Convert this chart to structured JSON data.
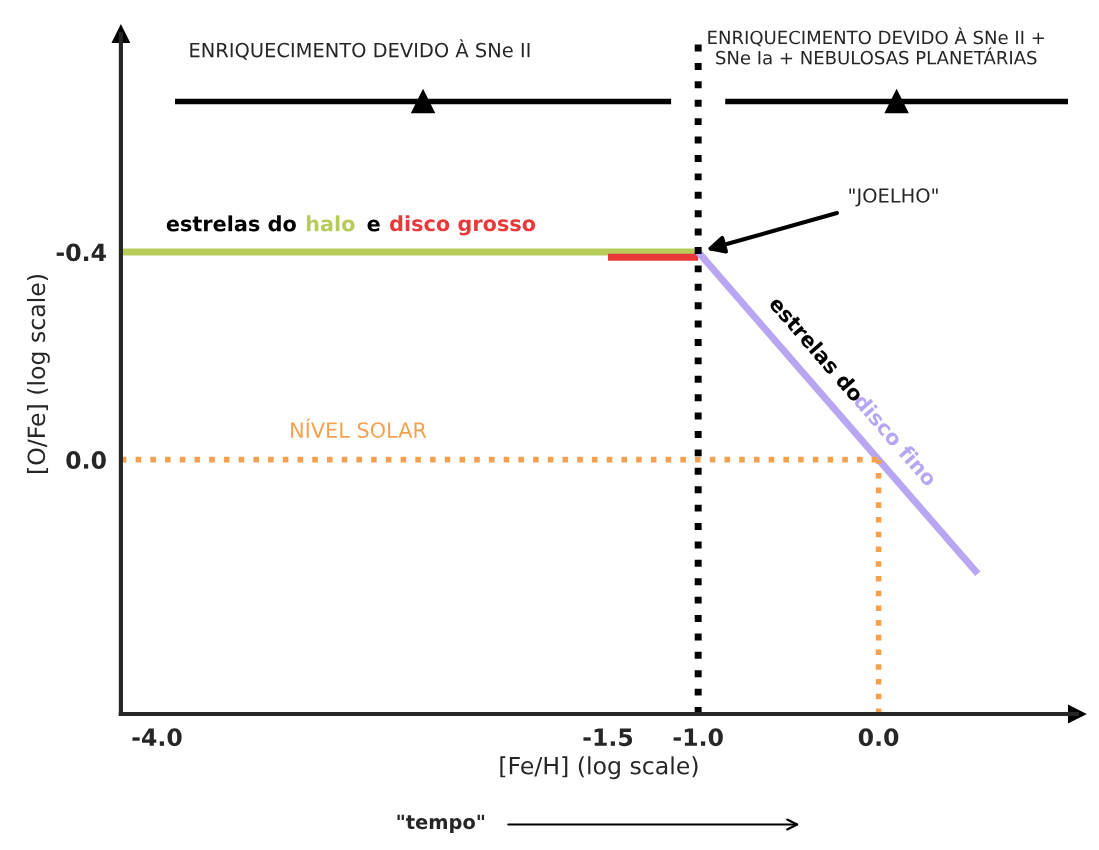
{
  "chart_data": {
    "type": "line",
    "xlabel": "[Fe/H] (log scale)",
    "ylabel": "[O/Fe] (log scale)",
    "xlim": [
      -4.2,
      1.1
    ],
    "ylim": [
      0.49,
      -0.82
    ],
    "xticks": [
      {
        "value": -4.0,
        "label": "-4.0"
      },
      {
        "value": -1.5,
        "label": "-1.5"
      },
      {
        "value": -1.0,
        "label": "-1.0"
      },
      {
        "value": 0.0,
        "label": "0.0"
      }
    ],
    "yticks": [
      {
        "value": -0.4,
        "label": "-0.4"
      },
      {
        "value": 0.0,
        "label": "0.0"
      }
    ],
    "grid": false,
    "series": [
      {
        "name": "halo",
        "color": "#b5cc5a",
        "x": [
          -4.2,
          -1.0
        ],
        "values": [
          -0.4,
          -0.4
        ]
      },
      {
        "name": "disco grosso",
        "color": "#e8383a",
        "x": [
          -1.5,
          -1.0
        ],
        "values": [
          -0.39,
          -0.39
        ]
      },
      {
        "name": "disco fino",
        "color": "#b9a6f2",
        "x": [
          -1.0,
          0.55
        ],
        "values": [
          -0.4,
          0.22
        ]
      },
      {
        "color": "#f5a04e",
        "x": [
          -4.2,
          0.0
        ],
        "values": [
          0.0,
          0.0
        ],
        "line_style": "dotted"
      },
      {
        "color": "#f5a04e",
        "x": [
          0.0,
          0.0
        ],
        "values": [
          0.49,
          0.0
        ],
        "line_style": "dotted"
      },
      {
        "color": "#000000",
        "x": [
          -3.9,
          -1.15
        ],
        "values": [
          -0.69,
          -0.69
        ]
      },
      {
        "color": "#000000",
        "x": [
          -0.85,
          1.05
        ],
        "values": [
          -0.69,
          -0.69
        ]
      }
    ],
    "ref_lines": [
      {
        "axis": "x",
        "value": -1.0,
        "color": "#000000",
        "line_style": "dotted"
      }
    ],
    "annotations": [
      "estrelas do",
      "e",
      "estrelas do",
      "NÍVEL SOLAR",
      "ENRIQUECIMENTO DEVIDO À SNe II",
      "ENRIQUECIMENTO DEVIDO À SNe II +\nSNe Ia + NEBULOSAS PLANETÁRIAS",
      "\"JOELHO\"",
      "\"tempo\""
    ]
  }
}
